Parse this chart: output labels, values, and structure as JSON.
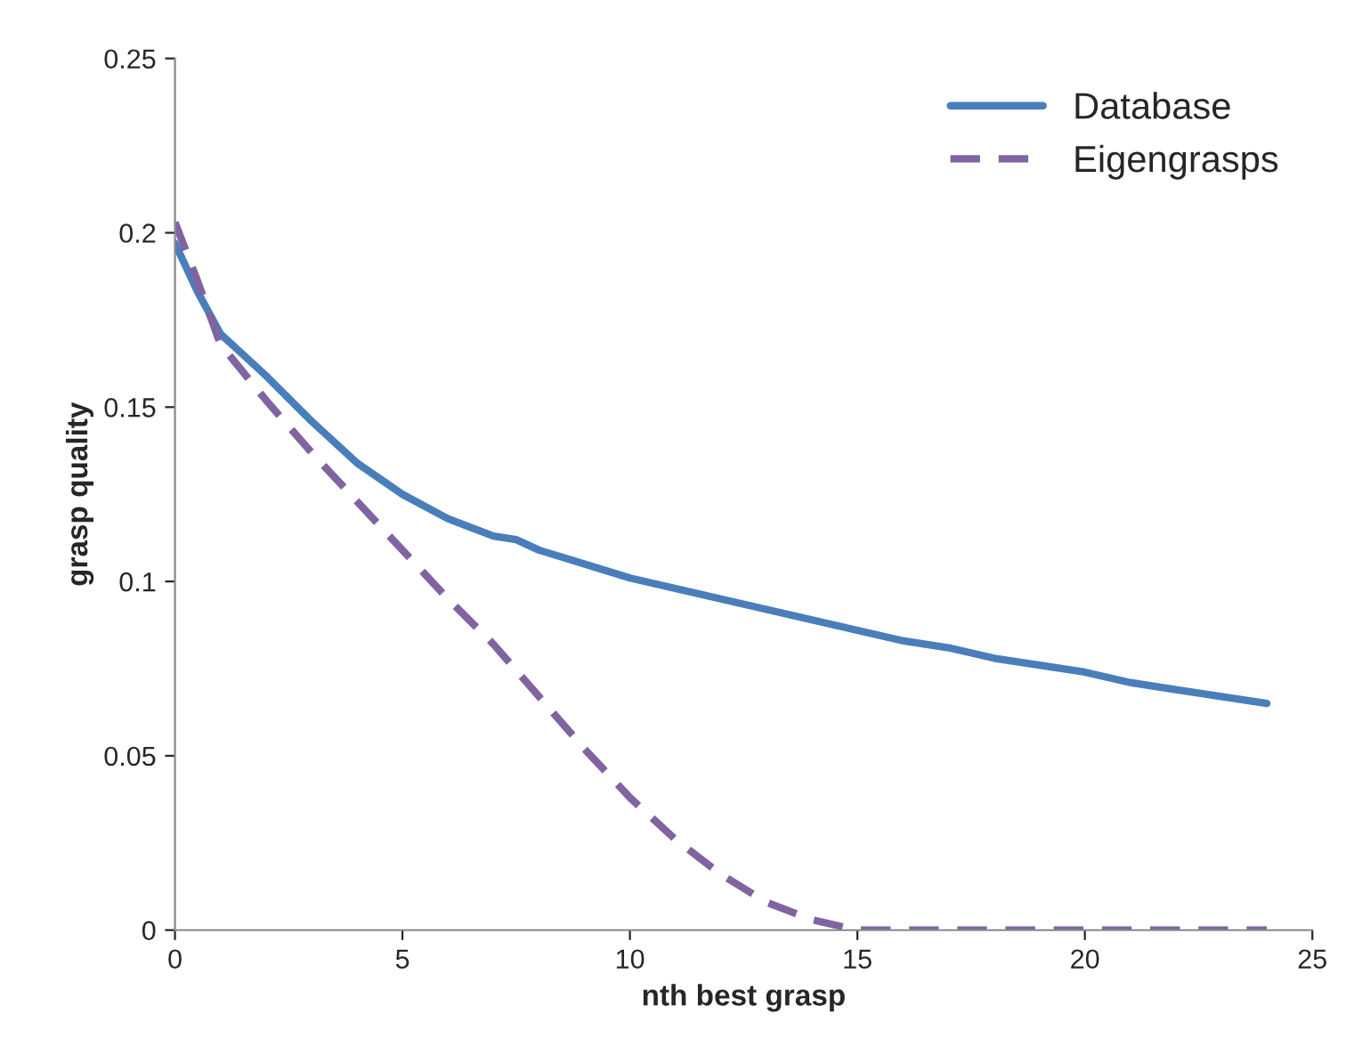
{
  "chart_data": {
    "type": "line",
    "xlabel": "nth best grasp",
    "ylabel": "grasp quality",
    "xlim": [
      0,
      25
    ],
    "xticks": [
      0,
      5,
      10,
      15,
      20,
      25
    ],
    "ylim": [
      0,
      0.25
    ],
    "yticks": [
      0,
      0.05,
      0.1,
      0.15,
      0.2,
      0.25
    ],
    "grid": false,
    "legend": "top right",
    "marker": "none",
    "series": [
      {
        "name": "Database",
        "color": "#4a7ebb",
        "line_style": "solid",
        "x": [
          0,
          0.5,
          1,
          1.5,
          2,
          3,
          4,
          5,
          6,
          7,
          7.5,
          8,
          9,
          10,
          11,
          12,
          13,
          14,
          15,
          16,
          17,
          18,
          19,
          20,
          21,
          22,
          23,
          24
        ],
        "values": [
          0.197,
          0.183,
          0.171,
          0.165,
          0.159,
          0.146,
          0.134,
          0.125,
          0.118,
          0.113,
          0.112,
          0.109,
          0.105,
          0.101,
          0.098,
          0.095,
          0.092,
          0.089,
          0.086,
          0.083,
          0.081,
          0.078,
          0.076,
          0.074,
          0.071,
          0.069,
          0.067,
          0.065
        ]
      },
      {
        "name": "Eigengrasps",
        "color": "#8064a2",
        "line_style": "dashed",
        "x": [
          0,
          0.5,
          1,
          2,
          3,
          4,
          5,
          6,
          7,
          8,
          9,
          10,
          11,
          12,
          13,
          14,
          15,
          16,
          18,
          20,
          22,
          24
        ],
        "values": [
          0.203,
          0.186,
          0.168,
          0.152,
          0.137,
          0.123,
          0.109,
          0.095,
          0.082,
          0.067,
          0.052,
          0.038,
          0.026,
          0.016,
          0.008,
          0.003,
          0.0,
          0.0,
          0.0,
          0.0,
          0.0,
          0.0
        ]
      }
    ]
  }
}
